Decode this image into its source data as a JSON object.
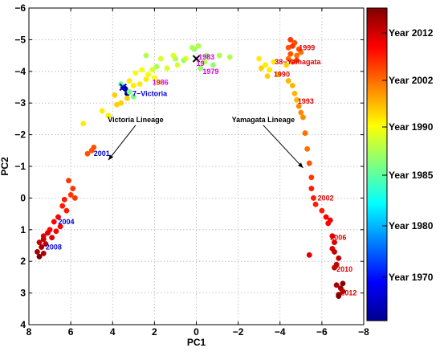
{
  "chart_data": {
    "type": "scatter",
    "xlabel": "PC1",
    "ylabel": "PC2",
    "xlim": [
      8,
      -8
    ],
    "ylim": [
      4,
      -6
    ],
    "x_reversed": true,
    "y_reversed": true,
    "grid": true,
    "xticks": [
      "8",
      "6",
      "4",
      "2",
      "0",
      "−2",
      "−4",
      "−6",
      "−8"
    ],
    "yticks": [
      "−6",
      "−5",
      "−4",
      "−3",
      "−2",
      "−1",
      "0",
      "1",
      "2",
      "3",
      "4"
    ],
    "colorbar": {
      "colormap": "jet",
      "labels": [
        "Year 2012",
        "Year 2002",
        "Year 1990",
        "Year 1985",
        "Year 1980",
        "Year 1970"
      ]
    },
    "series": [
      {
        "color_year": 1940,
        "points": [
          [
            3.5,
            -3.5
          ],
          [
            3.4,
            -3.45
          ],
          [
            3.3,
            -3.3
          ]
        ]
      },
      {
        "color_year": 1976,
        "points": [
          [
            3.6,
            -3.6
          ],
          [
            3.2,
            -3.35
          ],
          [
            3.0,
            -3.2
          ]
        ]
      },
      {
        "color_year": 1978,
        "points": [
          [
            0.6,
            -4.35
          ],
          [
            0.1,
            -4.7
          ],
          [
            -0.2,
            -4.1
          ],
          [
            -0.5,
            -4.5
          ],
          [
            -0.8,
            -4.2
          ]
        ]
      },
      {
        "color_year": 1980,
        "points": [
          [
            0.2,
            -4.75
          ],
          [
            -0.1,
            -4.8
          ],
          [
            -0.4,
            -4.3
          ],
          [
            -1.1,
            -4.5
          ],
          [
            -1.6,
            -4.45
          ],
          [
            2.4,
            -4.5
          ],
          [
            1.9,
            -4.15
          ],
          [
            1.0,
            -4.4
          ]
        ]
      },
      {
        "color_year": 1983,
        "points": [
          [
            1.4,
            -4.1
          ],
          [
            0.9,
            -4.2
          ],
          [
            1.1,
            -4.5
          ],
          [
            0.5,
            -4.4
          ],
          [
            2.1,
            -4.05
          ],
          [
            1.7,
            -4.4
          ]
        ]
      },
      {
        "color_year": 1985,
        "points": [
          [
            2.9,
            -3.95
          ],
          [
            2.6,
            -4.05
          ],
          [
            2.3,
            -3.9
          ],
          [
            2.0,
            -3.8
          ],
          [
            1.8,
            -3.65
          ]
        ]
      },
      {
        "color_year": 1987,
        "points": [
          [
            3.2,
            -3.7
          ],
          [
            3.0,
            -3.55
          ],
          [
            2.7,
            -3.6
          ],
          [
            2.4,
            -3.75
          ],
          [
            4.2,
            -2.6
          ],
          [
            4.5,
            -2.75
          ],
          [
            5.4,
            -2.35
          ],
          [
            -3.0,
            -4.4
          ],
          [
            -3.3,
            -4.2
          ],
          [
            -3.5,
            -4.05
          ],
          [
            -3.7,
            -4.3
          ]
        ]
      },
      {
        "color_year": 1989,
        "points": [
          [
            3.9,
            -3.25
          ],
          [
            3.6,
            -3.0
          ],
          [
            3.3,
            -3.15
          ],
          [
            3.8,
            -2.95
          ],
          [
            -3.1,
            -4.1
          ],
          [
            -3.4,
            -3.85
          ],
          [
            -3.9,
            -3.9
          ],
          [
            -4.3,
            -4.2
          ]
        ]
      },
      {
        "color_year": 1991,
        "points": [
          [
            -4.6,
            -3.55
          ],
          [
            -4.7,
            -3.3
          ],
          [
            -4.8,
            -3.1
          ],
          [
            -4.4,
            -3.7
          ]
        ]
      },
      {
        "color_year": 1994,
        "points": [
          [
            -4.9,
            -2.9
          ],
          [
            -5.1,
            -2.55
          ],
          [
            -5.0,
            -2.7
          ]
        ]
      },
      {
        "color_year": 1996,
        "points": [
          [
            -4.6,
            -4.3
          ],
          [
            -4.8,
            -4.5
          ],
          [
            -4.4,
            -4.4
          ],
          [
            -5.0,
            -4.6
          ],
          [
            -5.2,
            -2.05
          ],
          [
            -5.3,
            -1.55
          ]
        ]
      },
      {
        "color_year": 1998,
        "points": [
          [
            -4.4,
            -4.75
          ],
          [
            -4.7,
            -4.9
          ],
          [
            -4.9,
            -4.7
          ],
          [
            -4.5,
            -4.55
          ],
          [
            -5.4,
            -1.1
          ],
          [
            5.2,
            -1.4
          ],
          [
            4.9,
            -1.6
          ],
          [
            5.0,
            -1.5
          ]
        ]
      },
      {
        "color_year": 2000,
        "points": [
          [
            -4.5,
            -5.0
          ],
          [
            -4.6,
            -4.8
          ],
          [
            -4.8,
            -4.35
          ],
          [
            -5.5,
            -0.65
          ],
          [
            6.1,
            -0.55
          ],
          [
            5.9,
            -0.3
          ],
          [
            6.0,
            -0.1
          ],
          [
            5.8,
            0.0
          ]
        ]
      },
      {
        "color_year": 2002,
        "points": [
          [
            -5.5,
            -0.3
          ],
          [
            -5.6,
            0.0
          ],
          [
            -5.7,
            0.2
          ],
          [
            -6.0,
            0.4
          ],
          [
            6.3,
            0.05
          ],
          [
            6.4,
            0.25
          ],
          [
            6.2,
            0.4
          ]
        ]
      },
      {
        "color_year": 2004,
        "points": [
          [
            -6.2,
            0.6
          ],
          [
            -6.3,
            0.8
          ],
          [
            -6.4,
            0.7
          ],
          [
            6.6,
            0.6
          ],
          [
            6.8,
            0.75
          ],
          [
            6.5,
            0.9
          ],
          [
            7.0,
            1.0
          ],
          [
            6.7,
            1.05
          ]
        ]
      },
      {
        "color_year": 2006,
        "points": [
          [
            -5.4,
            1.8
          ],
          [
            -6.5,
            1.2
          ],
          [
            -6.6,
            1.4
          ],
          [
            -6.5,
            1.6
          ],
          [
            7.1,
            1.1
          ],
          [
            7.3,
            1.2
          ],
          [
            6.9,
            1.25
          ]
        ]
      },
      {
        "color_year": 2008,
        "points": [
          [
            -6.6,
            1.7
          ],
          [
            -6.8,
            1.9
          ],
          [
            -6.7,
            2.1
          ],
          [
            -6.6,
            2.2
          ],
          [
            7.3,
            1.3
          ],
          [
            7.5,
            1.4
          ],
          [
            7.2,
            1.45
          ]
        ]
      },
      {
        "color_year": 2010,
        "points": [
          [
            -6.7,
            2.75
          ],
          [
            -6.9,
            2.85
          ],
          [
            -7.0,
            2.95
          ],
          [
            -6.8,
            3.05
          ],
          [
            7.4,
            1.55
          ],
          [
            7.6,
            1.7
          ],
          [
            7.3,
            1.75
          ]
        ]
      },
      {
        "color_year": 2013,
        "points": [
          [
            -6.8,
            3.1
          ],
          [
            -7.0,
            2.7
          ],
          [
            7.5,
            1.85
          ]
        ]
      }
    ],
    "annotations": [
      {
        "text": "1986",
        "x": 2.1,
        "y": -3.65,
        "color": "#e000e0"
      },
      {
        "text": "19",
        "x": 0.0,
        "y": -4.25,
        "color": "#e000e0"
      },
      {
        "text": "1983",
        "x": -0.1,
        "y": -4.45,
        "color": "#e000e0"
      },
      {
        "text": "1979",
        "x": -0.3,
        "y": -4.0,
        "color": "#e000e0"
      },
      {
        "text": "7−Victoria",
        "x": 3.05,
        "y": -3.3,
        "color": "#0000dd"
      },
      {
        "text": "2001",
        "x": 4.9,
        "y": -1.4,
        "color": "#0000dd"
      },
      {
        "text": "2004",
        "x": 6.6,
        "y": 0.75,
        "color": "#0000dd"
      },
      {
        "text": "2008",
        "x": 7.2,
        "y": 1.55,
        "color": "#0000dd"
      },
      {
        "text": "38−Yamagata",
        "x": -3.75,
        "y": -4.3,
        "color": "#dd0000"
      },
      {
        "text": "1999",
        "x": -4.9,
        "y": -4.75,
        "color": "#dd0000"
      },
      {
        "text": "1990",
        "x": -3.7,
        "y": -3.9,
        "color": "#dd0000"
      },
      {
        "text": "1993",
        "x": -4.85,
        "y": -3.05,
        "color": "#dd0000"
      },
      {
        "text": "2002",
        "x": -5.8,
        "y": 0.0,
        "color": "#dd0000"
      },
      {
        "text": "2006",
        "x": -6.4,
        "y": 1.25,
        "color": "#dd0000"
      },
      {
        "text": "2010",
        "x": -6.7,
        "y": 2.25,
        "color": "#dd0000"
      },
      {
        "text": "2012",
        "x": -6.9,
        "y": 3.0,
        "color": "#dd0000"
      }
    ],
    "lineage_labels": [
      {
        "text": "Victoria Lineage",
        "x": 2.9,
        "y": -2.4,
        "arrow_to": [
          4.2,
          -1.2
        ]
      },
      {
        "text": "Yamagata Lineage",
        "x": -3.2,
        "y": -2.4,
        "arrow_to": [
          -5.1,
          -0.95
        ]
      }
    ],
    "markers": [
      {
        "symbol": "x",
        "x": 3.5,
        "y": -3.5,
        "color": "#0000dd"
      },
      {
        "symbol": "x",
        "x": 0.0,
        "y": -4.4,
        "color": "#000000"
      }
    ]
  }
}
